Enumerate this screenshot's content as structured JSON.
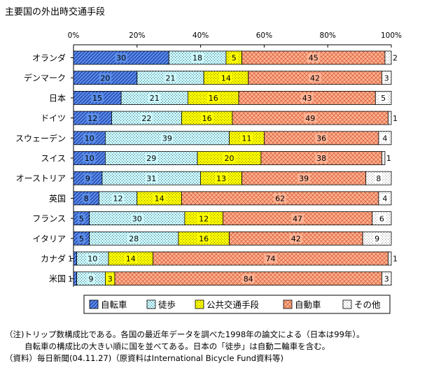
{
  "title": "主要国の外出時交通手段",
  "chart_data": {
    "type": "bar",
    "orientation": "horizontal",
    "stacked": true,
    "xlim": [
      0,
      100
    ],
    "x_ticks": [
      "0%",
      "20%",
      "40%",
      "60%",
      "80%",
      "100%"
    ],
    "categories": [
      "オランダ",
      "デンマーク",
      "日本",
      "ドイツ",
      "スウェーデン",
      "スイス",
      "オーストリア",
      "英国",
      "フランス",
      "イタリア",
      "カナダ",
      "米国"
    ],
    "series": [
      {
        "name": "自転車",
        "color": "#5b8de8",
        "pattern": "diagonal-hatch",
        "values": [
          30,
          20,
          15,
          12,
          10,
          10,
          9,
          8,
          5,
          5,
          1,
          1
        ]
      },
      {
        "name": "徒歩",
        "color": "#cdf7fb",
        "pattern": "dots",
        "values": [
          18,
          21,
          21,
          22,
          39,
          29,
          31,
          12,
          30,
          28,
          10,
          9
        ]
      },
      {
        "name": "公共交通手段",
        "color": "#ffff00",
        "pattern": "dots",
        "values": [
          5,
          14,
          16,
          16,
          11,
          20,
          13,
          14,
          12,
          16,
          14,
          3
        ]
      },
      {
        "name": "自動車",
        "color": "#ffb294",
        "pattern": "crosshatch",
        "values": [
          45,
          42,
          43,
          49,
          36,
          38,
          39,
          62,
          47,
          42,
          74,
          84
        ]
      },
      {
        "name": "その他",
        "color": "#ffffff",
        "pattern": "light-dots",
        "values": [
          2,
          3,
          5,
          1,
          4,
          1,
          8,
          4,
          6,
          9,
          1,
          3
        ]
      }
    ],
    "legend_position": "bottom"
  },
  "notes": [
    "（注)トリップ数構成比である。各国の最近年データを調べた1998年の論文による（日本は99年）。",
    "自転車の構成比の大きい順に国を並べてある。日本の「徒歩」は自動二輪車を含む。",
    "（資料）毎日新聞(04.11.27)（原資料はInternational Bicycle Fund資料等)"
  ]
}
